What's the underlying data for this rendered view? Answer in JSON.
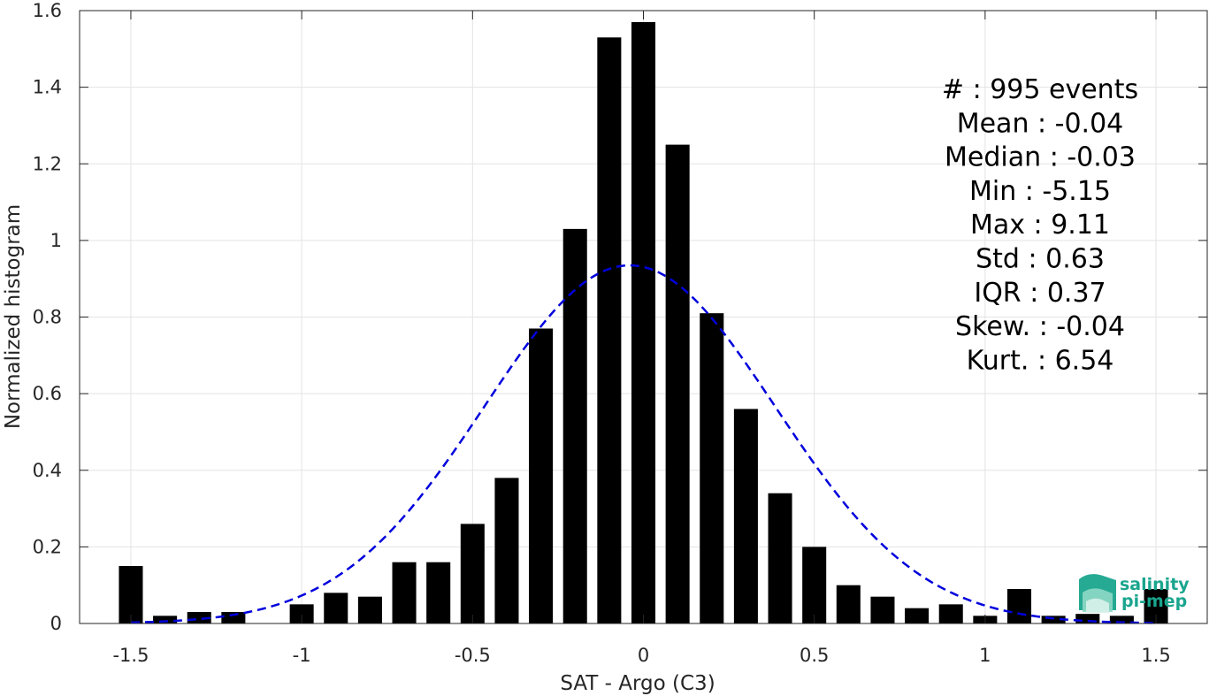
{
  "chart_data": {
    "type": "bar",
    "title": "",
    "xlabel": "SAT - Argo (C3)",
    "ylabel": "Normalized histogram",
    "xlim": [
      -1.65,
      1.65
    ],
    "ylim": [
      0,
      1.6
    ],
    "grid": true,
    "xticks": [
      -1.5,
      -1,
      -0.5,
      0,
      0.5,
      1,
      1.5
    ],
    "xtick_labels": [
      "-1.5",
      "-1",
      "-0.5",
      "0",
      "0.5",
      "1",
      "1.5"
    ],
    "yticks": [
      0,
      0.2,
      0.4,
      0.6,
      0.8,
      1,
      1.2,
      1.4,
      1.6
    ],
    "ytick_labels": [
      "0",
      "0.2",
      "0.4",
      "0.6",
      "0.8",
      "1",
      "1.2",
      "1.4",
      "1.6"
    ],
    "bin_width": 0.1,
    "bar_width": 0.07,
    "bar_color": "#000000",
    "bins": [
      -1.5,
      -1.4,
      -1.3,
      -1.2,
      -1.1,
      -1.0,
      -0.9,
      -0.8,
      -0.7,
      -0.6,
      -0.5,
      -0.4,
      -0.3,
      -0.2,
      -0.1,
      0.0,
      0.1,
      0.2,
      0.3,
      0.4,
      0.5,
      0.6,
      0.7,
      0.8,
      0.9,
      1.0,
      1.1,
      1.2,
      1.3,
      1.4,
      1.5
    ],
    "values": [
      0.15,
      0.02,
      0.03,
      0.03,
      0.0,
      0.05,
      0.08,
      0.07,
      0.16,
      0.16,
      0.26,
      0.38,
      0.77,
      1.03,
      1.53,
      1.57,
      1.25,
      0.81,
      0.56,
      0.34,
      0.2,
      0.1,
      0.07,
      0.04,
      0.05,
      0.02,
      0.09,
      0.02,
      0.025,
      0.02,
      0.09
    ],
    "fit_curve": {
      "style": "dashed",
      "color": "#0000dd",
      "mean": -0.04,
      "std": 0.425,
      "peak": 0.935,
      "x_range": [
        -1.5,
        1.5
      ]
    },
    "stats": [
      {
        "label": "#  ",
        "value": "995 events"
      },
      {
        "label": "Mean",
        "value": "-0.04"
      },
      {
        "label": "Median",
        "value": "-0.03"
      },
      {
        "label": "Min",
        "value": "-5.15"
      },
      {
        "label": "Max",
        "value": "9.11"
      },
      {
        "label": "Std",
        "value": "0.63"
      },
      {
        "label": "IQR",
        "value": "0.37"
      },
      {
        "label": "Skew.",
        "value": "-0.04"
      },
      {
        "label": "Kurt.",
        "value": "6.54"
      }
    ]
  },
  "logo": {
    "line1": "salinity",
    "line2": "pi-mep",
    "color": "#1aa58e"
  }
}
